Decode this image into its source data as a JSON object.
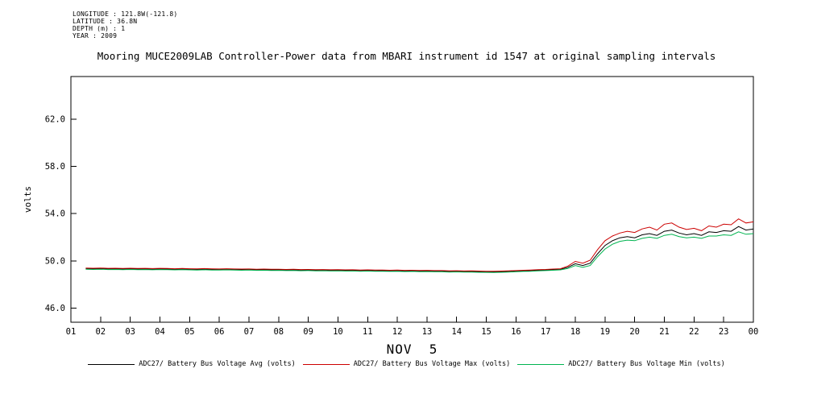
{
  "meta": {
    "longitude": "LONGITUDE : 121.8W(-121.8)",
    "latitude": "LATITUDE : 36.8N",
    "depth": "DEPTH (m) : 1",
    "year": "YEAR : 2009"
  },
  "chart_data": {
    "type": "line",
    "title": "Mooring MUCE2009LAB Controller-Power data from MBARI instrument id 1547 at original sampling intervals",
    "xlabel": "NOV  5",
    "ylabel": "volts",
    "grid": false,
    "legend_position": "bottom",
    "xlim": [
      1,
      24
    ],
    "ylim": [
      44.8,
      65.6
    ],
    "yticks": [
      46.0,
      50.0,
      54.0,
      58.0,
      62.0
    ],
    "ytick_labels": [
      "46.0",
      "50.0",
      "54.0",
      "58.0",
      "62.0"
    ],
    "xticks": [
      1,
      2,
      3,
      4,
      5,
      6,
      7,
      8,
      9,
      10,
      11,
      12,
      13,
      14,
      15,
      16,
      17,
      18,
      19,
      20,
      21,
      22,
      23,
      24
    ],
    "xtick_labels": [
      "01",
      "02",
      "03",
      "04",
      "05",
      "06",
      "07",
      "08",
      "09",
      "10",
      "11",
      "12",
      "13",
      "14",
      "15",
      "16",
      "17",
      "18",
      "19",
      "20",
      "21",
      "22",
      "23",
      "00"
    ],
    "x": [
      1.5,
      1.75,
      2,
      2.25,
      2.5,
      2.75,
      3,
      3.25,
      3.5,
      3.75,
      4,
      4.25,
      4.5,
      4.75,
      5,
      5.25,
      5.5,
      5.75,
      6,
      6.25,
      6.5,
      6.75,
      7,
      7.25,
      7.5,
      7.75,
      8,
      8.25,
      8.5,
      8.75,
      9,
      9.25,
      9.5,
      9.75,
      10,
      10.25,
      10.5,
      10.75,
      11,
      11.25,
      11.5,
      11.75,
      12,
      12.25,
      12.5,
      12.75,
      13,
      13.25,
      13.5,
      13.75,
      14,
      14.25,
      14.5,
      14.75,
      15,
      15.25,
      15.5,
      15.75,
      16,
      16.25,
      16.5,
      16.75,
      17,
      17.25,
      17.5,
      17.75,
      18,
      18.25,
      18.5,
      18.75,
      19,
      19.25,
      19.5,
      19.75,
      20,
      20.25,
      20.5,
      20.75,
      21,
      21.25,
      21.5,
      21.75,
      22,
      22.25,
      22.5,
      22.75,
      23,
      23.25,
      23.5,
      23.75,
      24
    ],
    "series": [
      {
        "name": "ADC27/ Battery Bus Voltage Avg (volts)",
        "color": "#000000",
        "values": [
          49.33,
          49.32,
          49.34,
          49.31,
          49.32,
          49.3,
          49.32,
          49.3,
          49.31,
          49.29,
          49.31,
          49.3,
          49.28,
          49.3,
          49.28,
          49.27,
          49.29,
          49.27,
          49.26,
          49.28,
          49.26,
          49.25,
          49.26,
          49.24,
          49.25,
          49.23,
          49.24,
          49.22,
          49.23,
          49.21,
          49.22,
          49.2,
          49.21,
          49.19,
          49.2,
          49.18,
          49.19,
          49.17,
          49.18,
          49.16,
          49.17,
          49.15,
          49.16,
          49.14,
          49.15,
          49.13,
          49.14,
          49.12,
          49.12,
          49.1,
          49.11,
          49.09,
          49.1,
          49.08,
          49.07,
          49.06,
          49.08,
          49.1,
          49.12,
          49.15,
          49.17,
          49.2,
          49.22,
          49.25,
          49.28,
          49.45,
          49.75,
          49.6,
          49.8,
          50.6,
          51.3,
          51.7,
          51.95,
          52.05,
          51.95,
          52.2,
          52.3,
          52.15,
          52.5,
          52.6,
          52.35,
          52.2,
          52.3,
          52.15,
          52.45,
          52.4,
          52.55,
          52.5,
          52.9,
          52.6,
          52.7
        ]
      },
      {
        "name": "ADC27/ Battery Bus Voltage Max (volts)",
        "color": "#cc0000",
        "values": [
          49.38,
          49.37,
          49.39,
          49.36,
          49.37,
          49.35,
          49.37,
          49.35,
          49.36,
          49.34,
          49.36,
          49.35,
          49.33,
          49.35,
          49.33,
          49.32,
          49.34,
          49.32,
          49.31,
          49.33,
          49.31,
          49.3,
          49.31,
          49.29,
          49.3,
          49.28,
          49.29,
          49.27,
          49.28,
          49.26,
          49.27,
          49.25,
          49.26,
          49.24,
          49.25,
          49.23,
          49.24,
          49.22,
          49.23,
          49.21,
          49.22,
          49.2,
          49.21,
          49.19,
          49.2,
          49.18,
          49.19,
          49.17,
          49.17,
          49.15,
          49.16,
          49.14,
          49.15,
          49.13,
          49.12,
          49.11,
          49.13,
          49.15,
          49.17,
          49.2,
          49.22,
          49.25,
          49.27,
          49.3,
          49.33,
          49.55,
          49.95,
          49.8,
          50.05,
          50.95,
          51.7,
          52.1,
          52.35,
          52.5,
          52.4,
          52.7,
          52.85,
          52.6,
          53.1,
          53.2,
          52.85,
          52.65,
          52.75,
          52.55,
          52.95,
          52.85,
          53.1,
          53.05,
          53.55,
          53.2,
          53.3
        ]
      },
      {
        "name": "ADC27/ Battery Bus Voltage Min (volts)",
        "color": "#00b450",
        "values": [
          49.28,
          49.27,
          49.29,
          49.26,
          49.27,
          49.25,
          49.27,
          49.25,
          49.26,
          49.24,
          49.26,
          49.25,
          49.23,
          49.25,
          49.23,
          49.22,
          49.24,
          49.22,
          49.21,
          49.23,
          49.21,
          49.2,
          49.21,
          49.19,
          49.2,
          49.18,
          49.19,
          49.17,
          49.18,
          49.16,
          49.17,
          49.15,
          49.16,
          49.14,
          49.15,
          49.13,
          49.14,
          49.12,
          49.13,
          49.11,
          49.12,
          49.1,
          49.11,
          49.09,
          49.1,
          49.08,
          49.09,
          49.07,
          49.07,
          49.05,
          49.06,
          49.04,
          49.05,
          49.03,
          49.02,
          49.01,
          49.03,
          49.05,
          49.07,
          49.1,
          49.12,
          49.15,
          49.17,
          49.2,
          49.23,
          49.35,
          49.6,
          49.45,
          49.6,
          50.35,
          51.0,
          51.4,
          51.65,
          51.75,
          51.7,
          51.9,
          52.0,
          51.9,
          52.15,
          52.25,
          52.05,
          51.95,
          52.0,
          51.9,
          52.1,
          52.1,
          52.2,
          52.15,
          52.45,
          52.25,
          52.3
        ]
      }
    ]
  }
}
